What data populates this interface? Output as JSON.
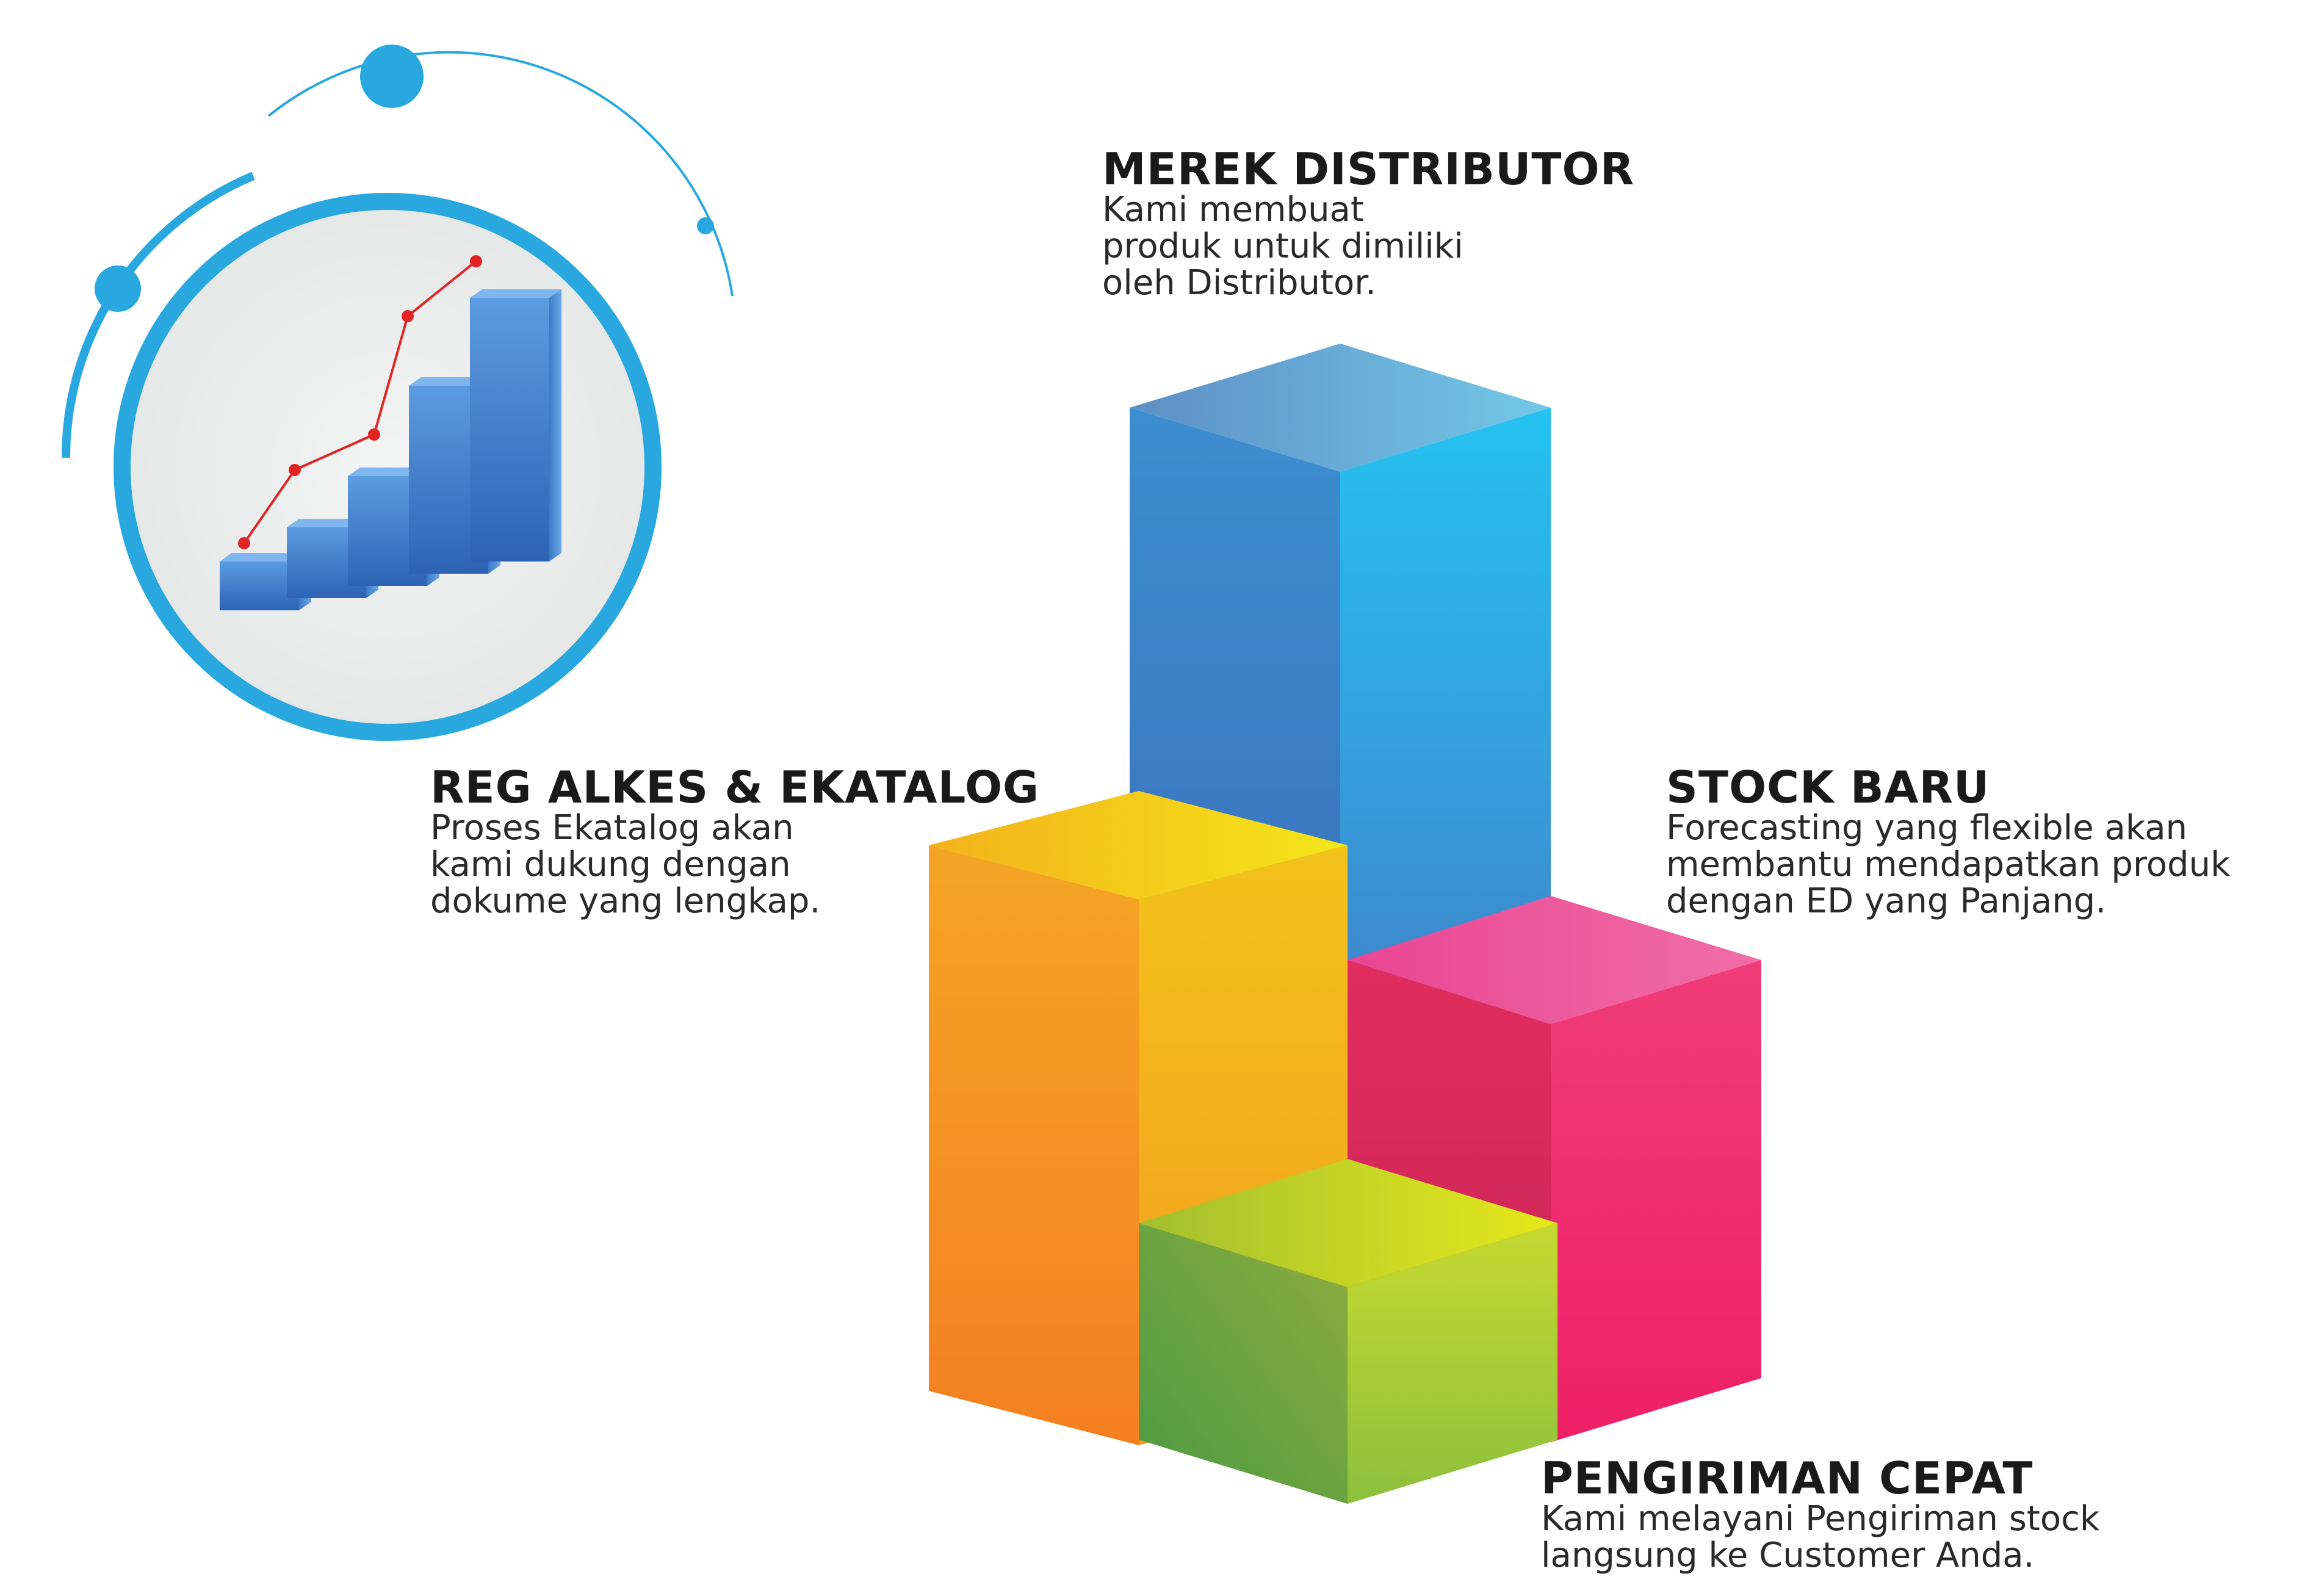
{
  "items": [
    {
      "key": "merek",
      "title": "MEREK DISTRIBUTOR",
      "lines": [
        "Kami membuat",
        "produk untuk dimiliki",
        "oleh Distributor."
      ],
      "color_top": "#6aa6d6",
      "color_left": "#3f78c4",
      "color_right": "#2bb6ea"
    },
    {
      "key": "reg",
      "title": "REG ALKES & EKATALOG",
      "lines": [
        "Proses Ekatalog akan",
        "kami dukung dengan",
        "dokume yang lengkap."
      ],
      "color_top": "#f5c518",
      "color_left": "#f48a22",
      "color_right": "#f3b61b"
    },
    {
      "key": "stock",
      "title": "STOCK BARU",
      "lines": [
        "Forecasting yang flexible akan",
        "membantu mendapatkan produk",
        "dengan ED yang Panjang."
      ],
      "color_top": "#ee5fa0",
      "color_left": "#d9235a",
      "color_right": "#ef2a6c"
    },
    {
      "key": "kirim",
      "title": "PENGIRIMAN CEPAT",
      "lines": [
        "Kami melayani Pengiriman stock",
        "langsung ke Customer Anda."
      ],
      "color_top": "#c8dc2a",
      "color_left": "#5aa140",
      "color_right": "#a6c83a"
    }
  ],
  "icon": {
    "name": "growth-chart-icon",
    "accent": "#29a8e0",
    "bar_color": "#3a78c8",
    "trend_color": "#e02424"
  }
}
